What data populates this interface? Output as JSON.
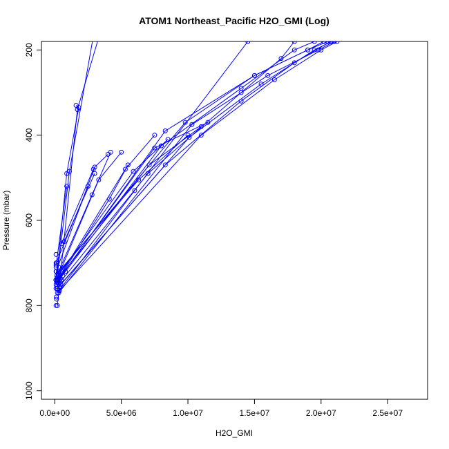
{
  "chart_data": {
    "type": "line",
    "title": "ATOM1 Northeast_Pacific H2O_GMI (Log)",
    "xlabel": "H2O_GMI",
    "ylabel": "Pressure (mbar)",
    "xlim": [
      -1000000,
      28000000
    ],
    "ylim": [
      1020,
      180
    ],
    "y_axis_inverted": true,
    "grid": false,
    "line_color": "#0000ff",
    "point_style": "open-circle",
    "x_ticks": [
      {
        "value": 0,
        "label": "0.0e+00"
      },
      {
        "value": 5000000,
        "label": "5.0e+06"
      },
      {
        "value": 10000000,
        "label": "1.0e+07"
      },
      {
        "value": 15000000,
        "label": "1.5e+07"
      },
      {
        "value": 20000000,
        "label": "2.0e+07"
      },
      {
        "value": 25000000,
        "label": "2.5e+07"
      }
    ],
    "y_ticks": [
      {
        "value": 200,
        "label": "200"
      },
      {
        "value": 400,
        "label": "400"
      },
      {
        "value": 600,
        "label": "600"
      },
      {
        "value": 800,
        "label": "800"
      },
      {
        "value": 1000,
        "label": "1000"
      }
    ],
    "series": [
      {
        "points": [
          [
            200000,
            800
          ],
          [
            1700000,
            340
          ],
          [
            3500000,
            150
          ]
        ]
      },
      {
        "points": [
          [
            150000,
            740
          ],
          [
            1100000,
            485
          ],
          [
            3000000,
            150
          ]
        ]
      },
      {
        "points": [
          [
            100000,
            750
          ],
          [
            900000,
            490
          ],
          [
            1800000,
            335
          ],
          [
            1600000,
            330
          ]
        ]
      },
      {
        "points": [
          [
            100000,
            720
          ],
          [
            3000000,
            475
          ],
          [
            4000000,
            445
          ]
        ]
      },
      {
        "points": [
          [
            150000,
            730
          ],
          [
            2800000,
            540
          ],
          [
            4200000,
            440
          ]
        ]
      },
      {
        "points": [
          [
            200000,
            735
          ],
          [
            3300000,
            505
          ],
          [
            5000000,
            440
          ]
        ]
      },
      {
        "points": [
          [
            150000,
            745
          ],
          [
            4100000,
            550
          ],
          [
            5500000,
            470
          ]
        ]
      },
      {
        "points": [
          [
            200000,
            740
          ],
          [
            5300000,
            480
          ],
          [
            7500000,
            400
          ]
        ]
      },
      {
        "points": [
          [
            250000,
            730
          ],
          [
            5900000,
            485
          ],
          [
            8500000,
            410
          ]
        ]
      },
      {
        "points": [
          [
            300000,
            720
          ],
          [
            6300000,
            505
          ],
          [
            10000000,
            400
          ]
        ]
      },
      {
        "points": [
          [
            300000,
            735
          ],
          [
            7100000,
            470
          ],
          [
            11000000,
            380
          ]
        ]
      },
      {
        "points": [
          [
            250000,
            740
          ],
          [
            7500000,
            430
          ],
          [
            11500000,
            370
          ]
        ]
      },
      {
        "points": [
          [
            200000,
            745
          ],
          [
            8000000,
            425
          ],
          [
            14000000,
            290
          ],
          [
            18000000,
            200
          ],
          [
            19500000,
            180
          ]
        ]
      },
      {
        "points": [
          [
            400000,
            735
          ],
          [
            8300000,
            390
          ],
          [
            15000000,
            260
          ],
          [
            19000000,
            200
          ],
          [
            20500000,
            180
          ]
        ]
      },
      {
        "points": [
          [
            450000,
            750
          ],
          [
            8300000,
            470
          ],
          [
            14000000,
            320
          ],
          [
            18000000,
            230
          ],
          [
            20700000,
            180
          ]
        ]
      },
      {
        "points": [
          [
            250000,
            725
          ],
          [
            9800000,
            370
          ],
          [
            15000000,
            260
          ],
          [
            19000000,
            200
          ],
          [
            20200000,
            180
          ]
        ]
      },
      {
        "points": [
          [
            200000,
            760
          ],
          [
            10100000,
            405
          ],
          [
            15500000,
            280
          ],
          [
            19500000,
            200
          ],
          [
            20800000,
            180
          ]
        ]
      },
      {
        "points": [
          [
            300000,
            770
          ],
          [
            10300000,
            375
          ],
          [
            16000000,
            260
          ],
          [
            19800000,
            200
          ],
          [
            21000000,
            180
          ]
        ]
      },
      {
        "points": [
          [
            350000,
            765
          ],
          [
            11000000,
            400
          ],
          [
            16500000,
            270
          ],
          [
            20000000,
            200
          ],
          [
            21200000,
            180
          ]
        ]
      },
      {
        "points": [
          [
            200000,
            770
          ],
          [
            6000000,
            530
          ],
          [
            14500000,
            180
          ]
        ]
      },
      {
        "points": [
          [
            150000,
            755
          ],
          [
            7000000,
            490
          ],
          [
            14000000,
            300
          ],
          [
            17000000,
            220
          ],
          [
            18000000,
            180
          ]
        ]
      },
      {
        "points": [
          [
            500000,
            655
          ],
          [
            2900000,
            480
          ]
        ]
      },
      {
        "points": [
          [
            700000,
            650
          ],
          [
            3000000,
            490
          ]
        ]
      },
      {
        "points": [
          [
            100000,
            700
          ],
          [
            2500000,
            520
          ]
        ]
      },
      {
        "points": [
          [
            100000,
            705
          ],
          [
            900000,
            520
          ]
        ]
      }
    ],
    "extra_points": [
      [
        100000,
        680
      ],
      [
        150000,
        700
      ],
      [
        100000,
        710
      ],
      [
        120000,
        720
      ],
      [
        80000,
        740
      ],
      [
        100000,
        760
      ],
      [
        120000,
        780
      ],
      [
        130000,
        785
      ],
      [
        100000,
        800
      ],
      [
        200000,
        760
      ],
      [
        300000,
        750
      ],
      [
        400000,
        745
      ],
      [
        600000,
        730
      ],
      [
        800000,
        720
      ],
      [
        500000,
        740
      ],
      [
        300000,
        710
      ],
      [
        250000,
        725
      ],
      [
        180000,
        735
      ],
      [
        220000,
        745
      ],
      [
        350000,
        755
      ]
    ]
  }
}
